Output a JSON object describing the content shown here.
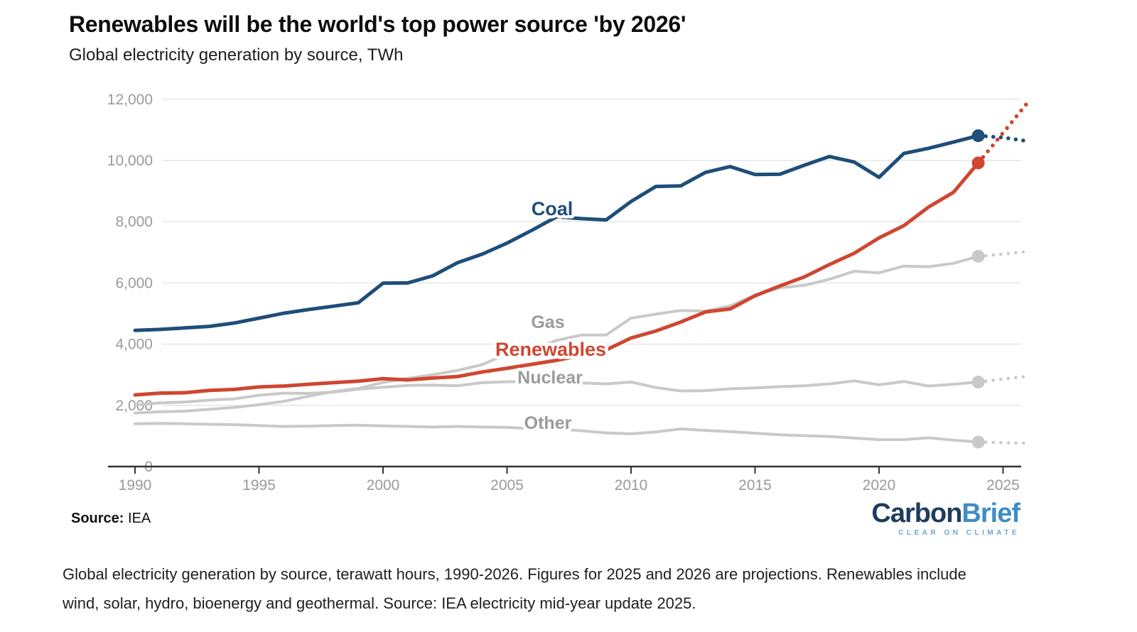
{
  "header": {
    "title": "Renewables will be the world's top power source 'by 2026'",
    "subtitle": "Global electricity generation by source, TWh"
  },
  "source": {
    "label": "Source:",
    "value": "IEA"
  },
  "logo": {
    "part1": "Carbon",
    "part2": "Brief",
    "tagline": "CLEAR ON CLIMATE"
  },
  "footer": {
    "text": "Global electricity generation by source, terawatt hours, 1990-2026. Figures for 2025 and 2026 are projections. Renewables include wind, solar, hydro, bioenergy and geothermal. Source: IEA electricity mid-year update 2025."
  },
  "colors": {
    "background": "#ffffff",
    "coal_blue": "#1e4e79",
    "renewables_red": "#cf4631",
    "gray_line": "#c9c9c9",
    "gray_label": "#9b9b9b",
    "gridline": "#e6e6e6",
    "axis": "#333333",
    "axis_text": "#9a9a9a",
    "logo_navy": "#1e3c5f",
    "logo_blue": "#3e8dc6"
  },
  "chart_data": {
    "type": "line",
    "title": "Renewables will be the world's top power source 'by 2026'",
    "subtitle": "Global electricity generation by source, TWh",
    "unit": "TWh",
    "xlabel": "",
    "ylabel": "TWh",
    "ylim": [
      0,
      12000
    ],
    "xlim": [
      1990,
      2026
    ],
    "grid": "horizontal",
    "legend_position": "inline-labels",
    "projection_from": 2024,
    "projection_note": "Figures for 2025 and 2026 are projections (dotted)",
    "x": [
      1990,
      1991,
      1992,
      1993,
      1994,
      1995,
      1996,
      1997,
      1998,
      1999,
      2000,
      2001,
      2002,
      2003,
      2004,
      2005,
      2006,
      2007,
      2008,
      2009,
      2010,
      2011,
      2012,
      2013,
      2014,
      2015,
      2016,
      2017,
      2018,
      2019,
      2020,
      2021,
      2022,
      2023,
      2024,
      2025,
      2026
    ],
    "x_ticks": [
      {
        "value": 1990,
        "label": "1990"
      },
      {
        "value": 1995,
        "label": "1995"
      },
      {
        "value": 2000,
        "label": "2000"
      },
      {
        "value": 2005,
        "label": "2005"
      },
      {
        "value": 2010,
        "label": "2010"
      },
      {
        "value": 2015,
        "label": "2015"
      },
      {
        "value": 2020,
        "label": "2020"
      },
      {
        "value": 2025,
        "label": "2025"
      }
    ],
    "y_ticks": [
      {
        "value": 0,
        "label": "0"
      },
      {
        "value": 2000,
        "label": "2,000"
      },
      {
        "value": 4000,
        "label": "4,000"
      },
      {
        "value": 6000,
        "label": "6,000"
      },
      {
        "value": 8000,
        "label": "8,000"
      },
      {
        "value": 10000,
        "label": "10,000"
      },
      {
        "value": 12000,
        "label": "12,000"
      }
    ],
    "series": [
      {
        "name": "Coal",
        "color": "#1e4e79",
        "emphasis": true,
        "values": [
          4450,
          4480,
          4530,
          4580,
          4690,
          4850,
          5010,
          5130,
          5240,
          5350,
          5990,
          6000,
          6230,
          6660,
          6940,
          7300,
          7720,
          8160,
          8100,
          8060,
          8660,
          9150,
          9170,
          9610,
          9800,
          9540,
          9550,
          9850,
          10130,
          9950,
          9450,
          10230,
          10400,
          10600,
          10810,
          10750,
          10630
        ]
      },
      {
        "name": "Renewables",
        "color": "#cf4631",
        "emphasis": true,
        "values": [
          2340,
          2400,
          2410,
          2490,
          2520,
          2600,
          2630,
          2690,
          2740,
          2790,
          2870,
          2830,
          2890,
          2940,
          3090,
          3210,
          3340,
          3470,
          3630,
          3810,
          4200,
          4430,
          4720,
          5050,
          5150,
          5580,
          5900,
          6200,
          6600,
          6970,
          7470,
          7870,
          8480,
          8960,
          9920,
          10900,
          11900
        ]
      },
      {
        "name": "Gas",
        "color": "#c9c9c9",
        "emphasis": false,
        "values": [
          1750,
          1790,
          1810,
          1870,
          1930,
          2020,
          2130,
          2300,
          2450,
          2550,
          2750,
          2880,
          3000,
          3140,
          3330,
          3680,
          3820,
          4120,
          4300,
          4300,
          4850,
          4980,
          5100,
          5080,
          5250,
          5600,
          5840,
          5920,
          6120,
          6380,
          6330,
          6550,
          6530,
          6640,
          6870,
          6940,
          7030
        ]
      },
      {
        "name": "Nuclear",
        "color": "#c9c9c9",
        "emphasis": false,
        "values": [
          2010,
          2080,
          2110,
          2170,
          2210,
          2330,
          2400,
          2390,
          2430,
          2530,
          2590,
          2650,
          2660,
          2640,
          2740,
          2770,
          2790,
          2750,
          2730,
          2700,
          2760,
          2580,
          2470,
          2480,
          2540,
          2570,
          2610,
          2640,
          2700,
          2800,
          2670,
          2780,
          2630,
          2690,
          2760,
          2860,
          2950
        ]
      },
      {
        "name": "Other",
        "color": "#c9c9c9",
        "emphasis": false,
        "values": [
          1400,
          1410,
          1400,
          1380,
          1370,
          1340,
          1310,
          1320,
          1340,
          1350,
          1330,
          1310,
          1290,
          1310,
          1290,
          1280,
          1240,
          1230,
          1170,
          1100,
          1070,
          1130,
          1230,
          1180,
          1140,
          1090,
          1040,
          1010,
          980,
          930,
          880,
          880,
          940,
          860,
          800,
          780,
          760
        ]
      }
    ]
  }
}
